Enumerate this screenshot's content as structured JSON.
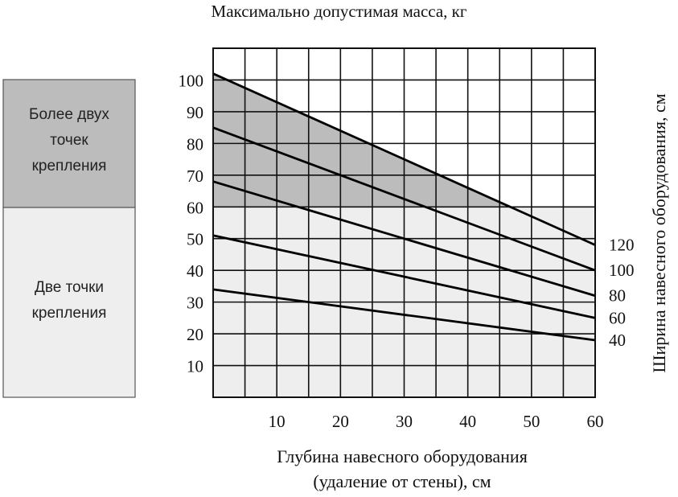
{
  "chart_data": {
    "type": "line",
    "title": "Максимально допустимая масса, кг",
    "xlabel_lines": [
      "Глубина навесного оборудования",
      "(удаление от стены), см"
    ],
    "ylabel_right": "Ширина навесного оборудования, см",
    "xlim": [
      0,
      60
    ],
    "ylim": [
      0,
      110
    ],
    "x_ticks": [
      10,
      20,
      30,
      40,
      50,
      60
    ],
    "y_ticks": [
      10,
      20,
      30,
      40,
      50,
      60,
      70,
      80,
      90,
      100
    ],
    "grid": true,
    "regions": [
      {
        "label_lines": [
          "Более двух",
          "точек",
          "крепления"
        ],
        "y_range": [
          60,
          110
        ],
        "color": "#bcbcbc"
      },
      {
        "label_lines": [
          "Две точки",
          "крепления"
        ],
        "y_range": [
          0,
          60
        ],
        "color": "#eeeeee"
      }
    ],
    "series": [
      {
        "name": "120",
        "x": [
          0,
          60
        ],
        "y": [
          102,
          48
        ]
      },
      {
        "name": "100",
        "x": [
          0,
          60
        ],
        "y": [
          85,
          40
        ]
      },
      {
        "name": "80",
        "x": [
          0,
          60
        ],
        "y": [
          68,
          32
        ]
      },
      {
        "name": "60",
        "x": [
          0,
          60
        ],
        "y": [
          51,
          25
        ]
      },
      {
        "name": "40",
        "x": [
          0,
          60
        ],
        "y": [
          34,
          18
        ]
      }
    ]
  }
}
